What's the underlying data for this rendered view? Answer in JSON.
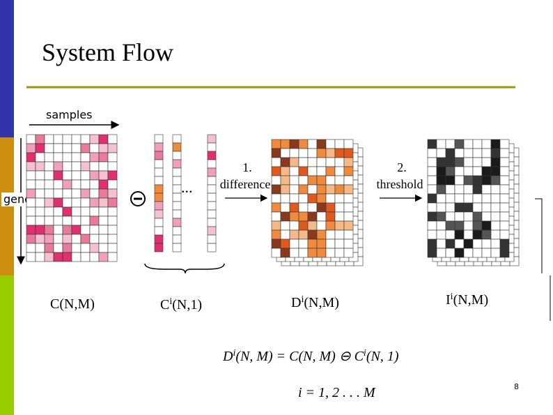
{
  "title": "System Flow",
  "axes": {
    "x": "samples",
    "y": "genes"
  },
  "ellipsis": "...",
  "steps": [
    {
      "number": "1.",
      "label": "difference"
    },
    {
      "number": "2.",
      "label": "threshold"
    }
  ],
  "matrices": [
    {
      "parts": [
        {
          "text": "C(N,M)"
        }
      ]
    },
    {
      "parts": [
        {
          "text": "C"
        },
        {
          "text": "i",
          "sup": true
        },
        {
          "text": "(N,1)"
        }
      ]
    },
    {
      "parts": [
        {
          "text": "D"
        },
        {
          "text": "i",
          "sup": true
        },
        {
          "text": "(N,M)"
        }
      ]
    },
    {
      "parts": [
        {
          "text": "I"
        },
        {
          "text": "i",
          "sup": true
        },
        {
          "text": "(N,M)"
        }
      ]
    }
  ],
  "formulas": [
    {
      "parts": [
        {
          "text": "D"
        },
        {
          "text": "i",
          "sup": true
        },
        {
          "text": "(N, M) = C(N, M) ⊖ C"
        },
        {
          "text": "i",
          "sup": true
        },
        {
          "text": "(N, 1)"
        }
      ]
    },
    {
      "parts": [
        {
          "text": "i = 1, 2 . . . M"
        }
      ]
    }
  ],
  "page_number": "8"
}
